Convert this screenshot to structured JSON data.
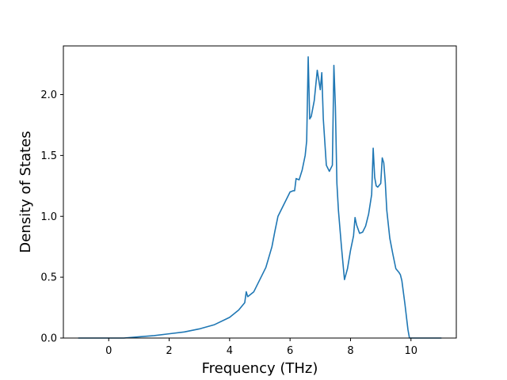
{
  "chart_data": {
    "type": "line",
    "xlabel": "Frequency (THz)",
    "ylabel": "Density of States",
    "xlim": [
      -1.5,
      11.5
    ],
    "ylim": [
      0,
      2.4
    ],
    "x_ticks": [
      0,
      2,
      4,
      6,
      8,
      10
    ],
    "x_tick_labels": [
      "0",
      "2",
      "4",
      "6",
      "8",
      "10"
    ],
    "y_ticks": [
      0.0,
      0.5,
      1.0,
      1.5,
      2.0
    ],
    "y_tick_labels": [
      "0.0",
      "0.5",
      "1.0",
      "1.5",
      "2.0"
    ],
    "grid": false,
    "line_color": "#1f77b4",
    "series": [
      {
        "x": [
          -1.0,
          0.0,
          0.5,
          1.0,
          1.5,
          2.0,
          2.5,
          3.0,
          3.5,
          4.0,
          4.3,
          4.5,
          4.55,
          4.6,
          4.8,
          5.0,
          5.2,
          5.4,
          5.5,
          5.6,
          5.8,
          6.0,
          6.1,
          6.15,
          6.2,
          6.3,
          6.4,
          6.5,
          6.55,
          6.6,
          6.65,
          6.7,
          6.8,
          6.9,
          7.0,
          7.05,
          7.1,
          7.2,
          7.3,
          7.4,
          7.45,
          7.5,
          7.55,
          7.6,
          7.7,
          7.8,
          7.9,
          8.0,
          8.1,
          8.15,
          8.2,
          8.3,
          8.4,
          8.5,
          8.6,
          8.7,
          8.75,
          8.8,
          8.85,
          8.9,
          9.0,
          9.05,
          9.1,
          9.15,
          9.2,
          9.3,
          9.4,
          9.5,
          9.6,
          9.65,
          9.7,
          9.8,
          9.9,
          9.95,
          10.0,
          10.5,
          11.0
        ],
        "y": [
          0.0,
          0.0,
          0.0,
          0.01,
          0.02,
          0.035,
          0.05,
          0.075,
          0.11,
          0.17,
          0.23,
          0.29,
          0.38,
          0.34,
          0.38,
          0.48,
          0.58,
          0.75,
          0.88,
          1.0,
          1.1,
          1.2,
          1.21,
          1.21,
          1.31,
          1.3,
          1.38,
          1.5,
          1.62,
          2.31,
          1.8,
          1.82,
          1.95,
          2.2,
          2.04,
          2.18,
          1.8,
          1.42,
          1.37,
          1.42,
          2.24,
          1.9,
          1.27,
          1.05,
          0.75,
          0.48,
          0.57,
          0.72,
          0.84,
          0.99,
          0.93,
          0.86,
          0.87,
          0.92,
          1.02,
          1.18,
          1.56,
          1.32,
          1.25,
          1.24,
          1.27,
          1.48,
          1.44,
          1.28,
          1.05,
          0.82,
          0.69,
          0.57,
          0.54,
          0.52,
          0.47,
          0.28,
          0.07,
          0.0,
          0.0,
          0.0,
          0.0
        ]
      }
    ]
  }
}
